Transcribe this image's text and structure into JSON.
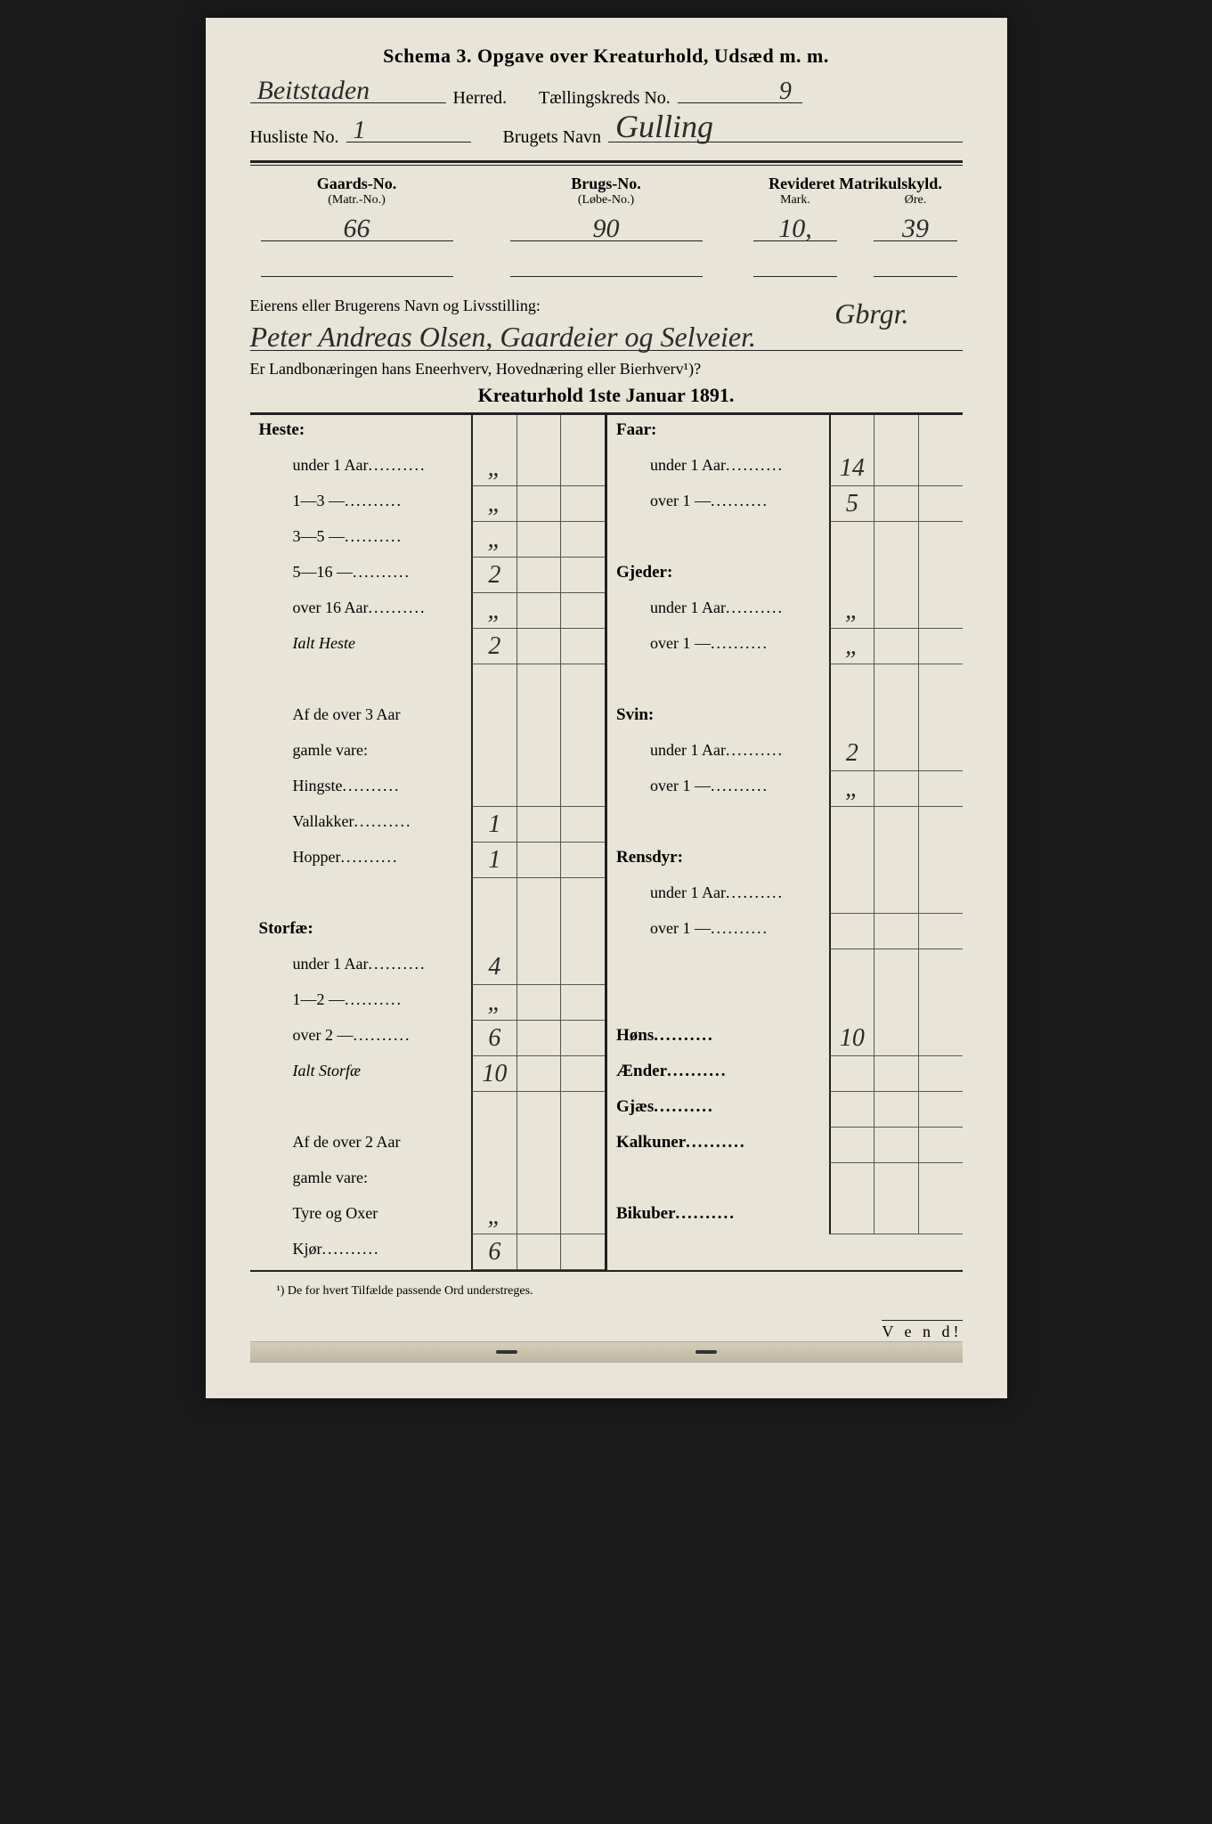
{
  "colors": {
    "paper": "#e8e4d8",
    "ink": "#222222",
    "handwriting": "#2a2a2a",
    "background": "#1a1a1a"
  },
  "header": {
    "title": "Schema 3.  Opgave over Kreaturhold, Udsæd m. m.",
    "herred_label": "Herred.",
    "herred_value": "Beitstaden",
    "kreds_label": "Tællingskreds No.",
    "kreds_value": "9",
    "husliste_label": "Husliste No.",
    "husliste_value": "1",
    "brugets_navn_label": "Brugets Navn",
    "brugets_navn_value": "Gulling"
  },
  "property": {
    "gaards_head": "Gaards-No.",
    "gaards_sub": "(Matr.-No.)",
    "gaards_value": "66",
    "brugs_head": "Brugs-No.",
    "brugs_sub": "(Løbe-No.)",
    "brugs_value": "90",
    "matrikul_head": "Revideret Matrikulskyld.",
    "mark_label": "Mark.",
    "mark_value": "10,",
    "ore_label": "Øre.",
    "ore_value": "39"
  },
  "owner": {
    "label": "Eierens eller Brugerens Navn og Livsstilling:",
    "value": "Peter Andreas Olsen,     Gaardeier og Selveier.",
    "extra": "Gbrgr.",
    "question": "Er Landbonæringen hans Eneerhverv, Hovednæring eller Bierhverv¹)?",
    "section_title": "Kreaturhold 1ste Januar 1891."
  },
  "left_rows": [
    {
      "label": "Heste:",
      "cat": true
    },
    {
      "label": "under 1 Aar",
      "indent": true,
      "dots": true,
      "val": "„"
    },
    {
      "label": "1—3   —",
      "indent": true,
      "dots": true,
      "val": "„"
    },
    {
      "label": "3—5   —",
      "indent": true,
      "dots": true,
      "val": "„"
    },
    {
      "label": "5—16  —",
      "indent": true,
      "dots": true,
      "val": "2"
    },
    {
      "label": "over 16 Aar",
      "indent": true,
      "dots": true,
      "val": "„"
    },
    {
      "label": "Ialt Heste",
      "indent": true,
      "italic": true,
      "val": "2"
    },
    {
      "spacer": true
    },
    {
      "label": "Af de over 3 Aar",
      "indent": true
    },
    {
      "label": "gamle vare:",
      "indent": true
    },
    {
      "label": "Hingste",
      "indent": true,
      "dots": true,
      "val": ""
    },
    {
      "label": "Vallakker",
      "indent": true,
      "dots": true,
      "val": "1"
    },
    {
      "label": "Hopper",
      "indent": true,
      "dots": true,
      "val": "1"
    },
    {
      "spacer": true
    },
    {
      "label": "Storfæ:",
      "cat": true
    },
    {
      "label": "under 1 Aar",
      "indent": true,
      "dots": true,
      "val": "4"
    },
    {
      "label": "1—2   —",
      "indent": true,
      "dots": true,
      "val": "„"
    },
    {
      "label": "over 2  —",
      "indent": true,
      "dots": true,
      "val": "6"
    },
    {
      "label": "Ialt Storfæ",
      "indent": true,
      "italic": true,
      "val": "10"
    },
    {
      "spacer": true
    },
    {
      "label": "Af de over 2 Aar",
      "indent": true
    },
    {
      "label": "gamle vare:",
      "indent": true
    },
    {
      "label": "Tyre og Oxer",
      "indent": true,
      "val": "„"
    },
    {
      "label": "Kjør",
      "indent": true,
      "dots": true,
      "val": "6"
    }
  ],
  "right_rows": [
    {
      "label": "Faar:",
      "cat": true
    },
    {
      "label": "under 1 Aar",
      "indent": true,
      "dots": true,
      "val": "14"
    },
    {
      "label": "over 1  —",
      "indent": true,
      "dots": true,
      "val": "5"
    },
    {
      "spacer": true
    },
    {
      "label": "Gjeder:",
      "cat": true
    },
    {
      "label": "under 1 Aar",
      "indent": true,
      "dots": true,
      "val": "„"
    },
    {
      "label": "over 1  —",
      "indent": true,
      "dots": true,
      "val": "„"
    },
    {
      "spacer": true
    },
    {
      "label": "Svin:",
      "cat": true
    },
    {
      "label": "under 1 Aar",
      "indent": true,
      "dots": true,
      "val": "2"
    },
    {
      "label": "over 1  —",
      "indent": true,
      "dots": true,
      "val": "„"
    },
    {
      "spacer": true
    },
    {
      "label": "Rensdyr:",
      "cat": true
    },
    {
      "label": "under 1 Aar",
      "indent": true,
      "dots": true,
      "val": ""
    },
    {
      "label": "over 1  —",
      "indent": true,
      "dots": true,
      "val": ""
    },
    {
      "spacer": true
    },
    {
      "spacer": true
    },
    {
      "label": "Høns",
      "cat": true,
      "dots": true,
      "val": "10"
    },
    {
      "label": "Ænder",
      "cat": true,
      "dots": true,
      "val": ""
    },
    {
      "label": "Gjæs",
      "cat": true,
      "dots": true,
      "val": ""
    },
    {
      "label": "Kalkuner",
      "cat": true,
      "dots": true,
      "val": ""
    },
    {
      "spacer": true
    },
    {
      "label": "Bikuber",
      "cat": true,
      "dots": true,
      "val": ""
    }
  ],
  "footnote": "¹) De for hvert Tilfælde passende Ord understreges.",
  "vend": "V e n d!"
}
